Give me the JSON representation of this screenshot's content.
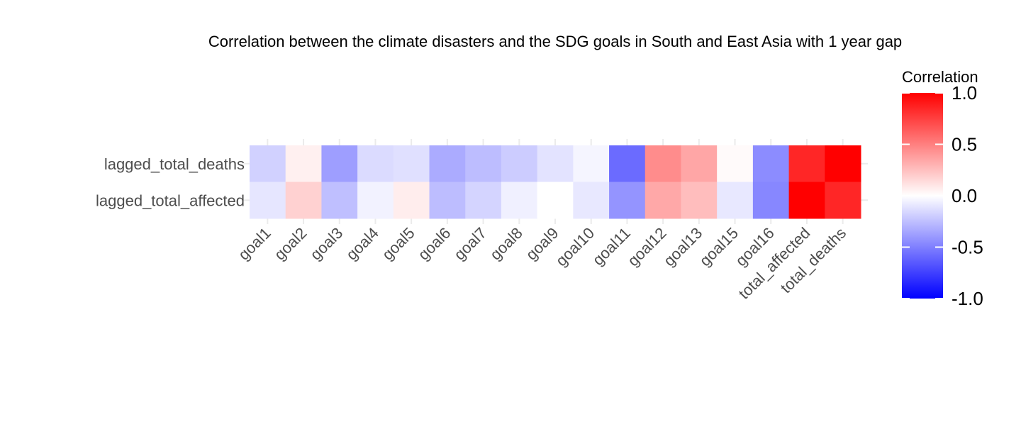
{
  "chart_data": {
    "type": "heatmap",
    "title": "Correlation between the climate disasters and the SDG goals in South and East Asia with 1 year gap",
    "x_categories": [
      "goal1",
      "goal2",
      "goal3",
      "goal4",
      "goal5",
      "goal6",
      "goal7",
      "goal8",
      "goal9",
      "goal10",
      "goal11",
      "goal12",
      "goal13",
      "goal15",
      "goal16",
      "total_affected",
      "total_deaths"
    ],
    "y_categories": [
      "lagged_total_deaths",
      "lagged_total_affected"
    ],
    "values": [
      [
        -0.18,
        0.06,
        -0.38,
        -0.14,
        -0.12,
        -0.33,
        -0.26,
        -0.2,
        -0.11,
        -0.04,
        -0.58,
        0.45,
        0.35,
        0.02,
        -0.45,
        0.85,
        1.0
      ],
      [
        -0.1,
        0.18,
        -0.25,
        -0.05,
        0.07,
        -0.26,
        -0.17,
        -0.06,
        0.0,
        -0.09,
        -0.42,
        0.34,
        0.26,
        -0.09,
        -0.47,
        1.0,
        0.85
      ]
    ],
    "legend": {
      "title": "Correlation",
      "ticks": [
        "1.0",
        "0.5",
        "0.0",
        "-0.5",
        "-1.0"
      ],
      "range": [
        -1,
        1
      ],
      "colors": {
        "low": "#0000ff",
        "mid": "#ffffff",
        "high": "#ff0000"
      },
      "placement": "right"
    },
    "xlabel": "",
    "ylabel": ""
  }
}
